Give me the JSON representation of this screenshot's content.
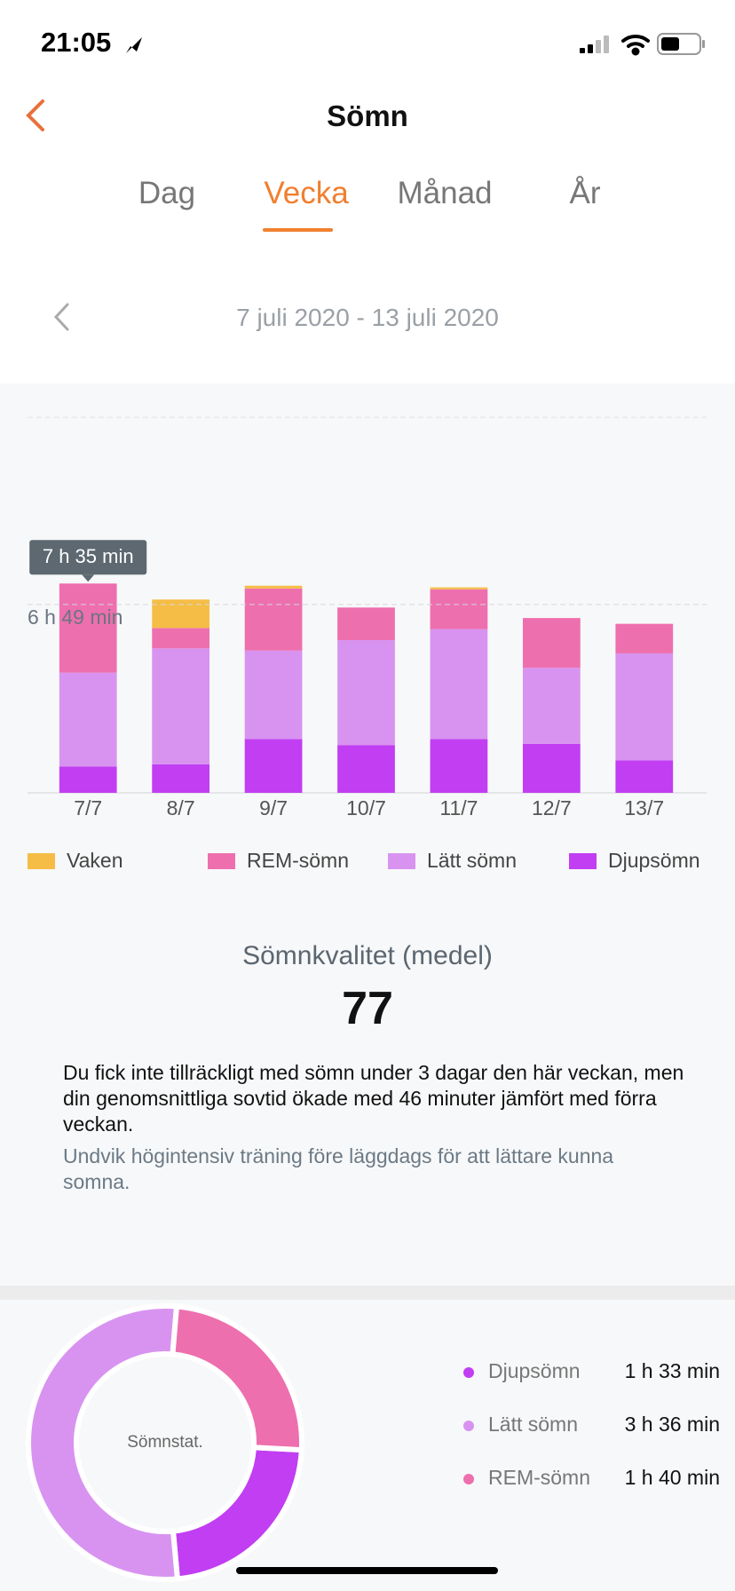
{
  "status_bar": {
    "time": "21:05"
  },
  "header": {
    "title": "Sömn"
  },
  "tabs": {
    "items": [
      "Dag",
      "Vecka",
      "Månad",
      "År"
    ],
    "active": 1
  },
  "date_range": "7 juli 2020 - 13 juli 2020",
  "chart_data": [
    {
      "type": "bar",
      "stacked": true,
      "categories": [
        "7/7",
        "8/7",
        "9/7",
        "10/7",
        "11/7",
        "12/7",
        "13/7"
      ],
      "series": [
        {
          "name": "Vaken",
          "color": "#f5bd46",
          "values": [
            0,
            1.03,
            0.1,
            0,
            0.07,
            0,
            0
          ]
        },
        {
          "name": "REM-sömn",
          "color": "#ee6fae",
          "values": [
            3.23,
            0.74,
            2.25,
            1.18,
            1.44,
            1.8,
            1.07
          ]
        },
        {
          "name": "Lätt sömn",
          "color": "#d893f0",
          "values": [
            3.4,
            4.2,
            3.2,
            3.8,
            3.98,
            2.76,
            3.87
          ]
        },
        {
          "name": "Djupsömn",
          "color": "#c13ef2",
          "values": [
            0.95,
            1.03,
            1.95,
            1.73,
            1.95,
            1.77,
            1.18
          ]
        }
      ],
      "ylim": [
        0,
        13.6
      ],
      "average": {
        "value": 6.82,
        "label": "6 h 49 min"
      },
      "tooltip": {
        "category": 0,
        "value": 7.58,
        "label": "7 h 35 min"
      }
    },
    {
      "type": "donut",
      "center_label": "Sömnstat.",
      "categories": [
        "Djupsömn",
        "Lätt sömn",
        "REM-sömn"
      ],
      "values": [
        1.55,
        3.6,
        1.67
      ],
      "value_labels": [
        "1 h 33 min",
        "3 h 36 min",
        "1 h 40 min"
      ],
      "colors": [
        "#c13ef2",
        "#d893f0",
        "#ee6fae"
      ]
    }
  ],
  "summary": {
    "title": "Sömnkvalitet (medel)",
    "score": "77",
    "text": "Du fick inte tillräckligt med sömn under 3 dagar den här veckan, men din genomsnittliga sovtid ökade med 46 minuter jämfört med förra veckan.",
    "tip": "Undvik högintensiv träning före läggdags för att lättare kunna somna."
  }
}
